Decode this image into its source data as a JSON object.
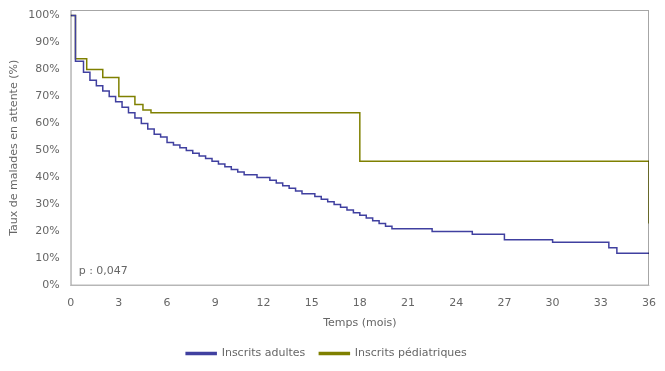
{
  "chart_data": {
    "type": "line",
    "line_style": "step",
    "xlabel": "Temps (mois)",
    "ylabel": "Taux de malades en attente (%)",
    "annotation": {
      "text": "p : 0,047",
      "x": 0.5,
      "y": 0.035
    },
    "xlim": [
      0,
      36
    ],
    "ylim": [
      0,
      1.02
    ],
    "xticks": [
      0,
      3,
      6,
      9,
      12,
      15,
      18,
      21,
      24,
      27,
      30,
      33,
      36
    ],
    "yticks": [
      {
        "value": 0.0,
        "label": "0%"
      },
      {
        "value": 0.1,
        "label": "10%"
      },
      {
        "value": 0.2,
        "label": "20%"
      },
      {
        "value": 0.3,
        "label": "30%"
      },
      {
        "value": 0.4,
        "label": "40%"
      },
      {
        "value": 0.5,
        "label": "50%"
      },
      {
        "value": 0.6,
        "label": "60%"
      },
      {
        "value": 0.7,
        "label": "70%"
      },
      {
        "value": 0.8,
        "label": "80%"
      },
      {
        "value": 0.9,
        "label": "90%"
      },
      {
        "value": 1.0,
        "label": "100%"
      }
    ],
    "grid": false,
    "legend": "bottom",
    "series": [
      {
        "name": "Inscrits adultes",
        "color": "#4040a0",
        "x": [
          0,
          0.3,
          0.8,
          1.2,
          1.6,
          2.0,
          2.4,
          2.8,
          3.2,
          3.6,
          4.0,
          4.4,
          4.8,
          5.2,
          5.6,
          6.0,
          6.4,
          6.8,
          7.2,
          7.6,
          8.0,
          8.4,
          8.8,
          9.2,
          9.6,
          10.0,
          10.4,
          10.8,
          11.2,
          11.6,
          12.0,
          12.4,
          12.8,
          13.2,
          13.6,
          14.0,
          14.4,
          14.8,
          15.2,
          15.6,
          16.0,
          16.4,
          16.8,
          17.2,
          17.6,
          18.0,
          18.4,
          18.8,
          19.2,
          19.6,
          20.0,
          20.5,
          21.0,
          21.5,
          22.0,
          22.5,
          23.0,
          23.5,
          24.0,
          25.0,
          26.0,
          27.0,
          28.0,
          29.0,
          30.0,
          31.0,
          32.0,
          33.0,
          33.5,
          34.0,
          36.0
        ],
        "values": [
          1.0,
          0.83,
          0.79,
          0.76,
          0.74,
          0.72,
          0.7,
          0.68,
          0.66,
          0.64,
          0.62,
          0.6,
          0.58,
          0.56,
          0.55,
          0.53,
          0.52,
          0.51,
          0.5,
          0.49,
          0.48,
          0.47,
          0.46,
          0.45,
          0.44,
          0.43,
          0.42,
          0.41,
          0.41,
          0.4,
          0.4,
          0.39,
          0.38,
          0.37,
          0.36,
          0.35,
          0.34,
          0.34,
          0.33,
          0.32,
          0.31,
          0.3,
          0.29,
          0.28,
          0.27,
          0.26,
          0.25,
          0.24,
          0.23,
          0.22,
          0.21,
          0.21,
          0.21,
          0.21,
          0.21,
          0.2,
          0.2,
          0.2,
          0.2,
          0.19,
          0.19,
          0.17,
          0.17,
          0.17,
          0.16,
          0.16,
          0.16,
          0.16,
          0.14,
          0.12,
          0.12
        ]
      },
      {
        "name": "Inscrits pédiatriques",
        "color": "#7f8000",
        "x": [
          0,
          0.3,
          1.0,
          2.0,
          3.0,
          4.0,
          4.5,
          5.0,
          5.5,
          12.0,
          14.5,
          15.5,
          18.0,
          33.0,
          33.5,
          36.0
        ],
        "values": [
          1.0,
          0.84,
          0.8,
          0.77,
          0.7,
          0.67,
          0.65,
          0.64,
          0.64,
          0.64,
          0.64,
          0.64,
          0.46,
          0.46,
          0.46,
          0.23
        ]
      }
    ]
  }
}
